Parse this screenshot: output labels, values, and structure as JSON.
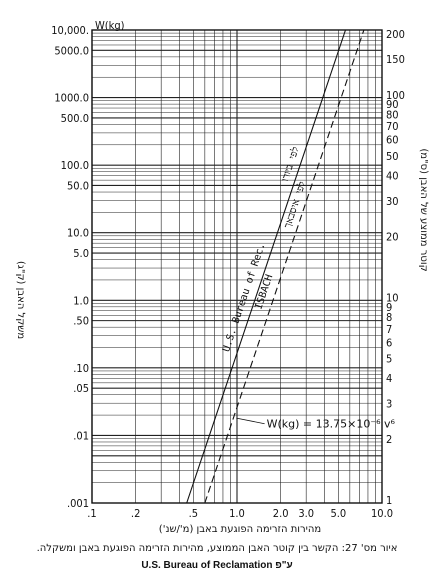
{
  "chart_data": {
    "type": "line",
    "x_scale": "log",
    "xlim": [
      0.1,
      10.0
    ],
    "left_ylim": [
      0.001,
      10000
    ],
    "right_ylim": [
      1,
      200
    ],
    "left_y_scale": "log",
    "right_y_scale": "log",
    "grid": true,
    "x_ticks": [
      ".1",
      ".2",
      ".5",
      "1.0",
      "2.0",
      "3.0",
      "5.0",
      "10.0"
    ],
    "left_y_ticks": [
      {
        "value": 10000,
        "label": "10,000."
      },
      {
        "value": 5000,
        "label": "5000.0"
      },
      {
        "value": 1000,
        "label": "1000.0"
      },
      {
        "value": 500,
        "label": "500.0"
      },
      {
        "value": 100,
        "label": "100.0"
      },
      {
        "value": 50,
        "label": "50.0"
      },
      {
        "value": 10,
        "label": "10.0"
      },
      {
        "value": 5,
        "label": "5.0"
      },
      {
        "value": 1,
        "label": "1.0"
      },
      {
        "value": 0.5,
        "label": ".50"
      },
      {
        "value": 0.1,
        "label": ".10"
      },
      {
        "value": 0.05,
        "label": ".05"
      },
      {
        "value": 0.01,
        "label": ".01"
      },
      {
        "value": 0.001,
        "label": ".001"
      }
    ],
    "left_y_top_label": "W(kg)",
    "right_y_ticks": [
      "200",
      "150",
      "100",
      "90",
      "80",
      "70",
      "60",
      "50",
      "40",
      "30",
      "20",
      "10",
      "9",
      "8",
      "7",
      "6",
      "5",
      "4",
      "3",
      "2",
      "1"
    ],
    "xlabel": "מהירות הזרימה הפוגעת באבן (מ'/שנ')",
    "ylabel_left": "משקל האבן (ק\"ג)",
    "ylabel_right": "קוטר ממוצע של האבן (ס\"מ)",
    "series": [
      {
        "name": "U.S. Bureau of Rec.",
        "style": "solid",
        "points": [
          [
            0.45,
            0.001
          ],
          [
            5.6,
            10000
          ]
        ]
      },
      {
        "name": "ISBACH",
        "style": "dashed",
        "points": [
          [
            0.6,
            0.001
          ],
          [
            7.5,
            10000
          ]
        ]
      }
    ],
    "annotations": [
      {
        "text": "U.S. Bureau of Rec.",
        "series": "U.S. Bureau of Rec."
      },
      {
        "text": "לפי ביורו",
        "series": "U.S. Bureau of Rec."
      },
      {
        "text": "ISBACH",
        "series": "ISBACH"
      },
      {
        "text": "לפי איסבאך",
        "series": "ISBACH"
      },
      {
        "text": "W(kg) = 13.75×10⁻⁶ v⁶"
      }
    ]
  },
  "caption": "איור מס' 27: הקשר בין קוטר האבן הממוצע, מהירות הזרימה הפוגעת באבן ומשקלה.",
  "source": "U.S. Bureau of Reclamation ע\"פ"
}
